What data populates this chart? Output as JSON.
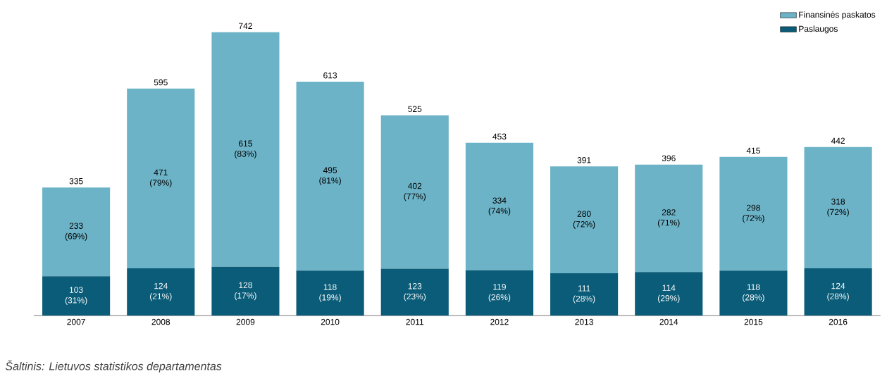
{
  "chart_data": {
    "type": "bar",
    "stacked": true,
    "categories": [
      "2007",
      "2008",
      "2009",
      "2010",
      "2011",
      "2012",
      "2013",
      "2014",
      "2015",
      "2016"
    ],
    "series": [
      {
        "name": "Paslaugos",
        "color": "#0b5c78",
        "values": [
          103,
          124,
          128,
          118,
          123,
          119,
          111,
          114,
          118,
          124
        ],
        "value_labels": [
          "103 (31%)",
          "124 (21%)",
          "128 (17%)",
          "118 (19%)",
          "123 (23%)",
          "119 (26%)",
          "111 (28%)",
          "114 (29%)",
          "118 (28%)",
          "124 (28%)"
        ]
      },
      {
        "name": "Finansinės paskatos",
        "color": "#6db3c7",
        "values": [
          233,
          471,
          615,
          495,
          402,
          334,
          280,
          282,
          298,
          318
        ],
        "value_labels": [
          "233 (69%)",
          "471 (79%)",
          "615 (83%)",
          "495 (81%)",
          "402 (77%)",
          "334 (74%)",
          "280 (72%)",
          "282 (71%)",
          "298 (72%)",
          "318 (72%)"
        ]
      }
    ],
    "totals": [
      "335",
      "595",
      "742",
      "613",
      "525",
      "453",
      "391",
      "396",
      "415",
      "442"
    ],
    "legend": "top right",
    "annotations": [
      "Šaltinis: Lietuvos statistikos departamentas"
    ]
  }
}
